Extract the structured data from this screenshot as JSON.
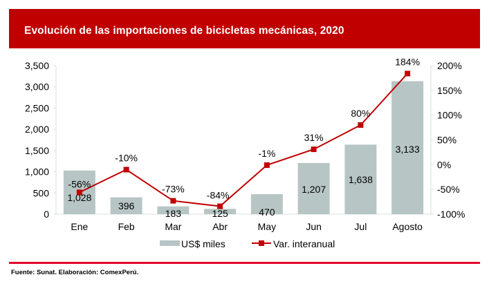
{
  "header": {
    "title": "Evolución de las importaciones de bicicletas mecánicas, 2020"
  },
  "footer": {
    "source": "Fuente: Sunat. Elaboración: ComexPerú."
  },
  "colors": {
    "header_bg": "#c00000",
    "bar": "#b7c6c4",
    "line": "#c00000",
    "footer_line": "#e4002b"
  },
  "chart_data": {
    "type": "bar+line",
    "title": "Evolución de las importaciones de bicicletas mecánicas, 2020",
    "categories": [
      "Ene",
      "Feb",
      "Mar",
      "Abr",
      "May",
      "Jun",
      "Jul",
      "Agosto"
    ],
    "series": [
      {
        "name": "US$ miles",
        "type": "bar",
        "axis": "left",
        "values": [
          1028,
          396,
          183,
          125,
          470,
          1207,
          1638,
          3133
        ],
        "labels": [
          "1,028",
          "396",
          "183",
          "125",
          "470",
          "1,207",
          "1,638",
          "3,133"
        ]
      },
      {
        "name": "Var. interanual",
        "type": "line",
        "axis": "right",
        "values": [
          -56,
          -10,
          -73,
          -84,
          -1,
          31,
          80,
          184
        ],
        "labels": [
          "-56%",
          "-10%",
          "-73%",
          "-84%",
          "-1%",
          "31%",
          "80%",
          "184%"
        ]
      }
    ],
    "left_axis": {
      "min": 0,
      "max": 3500,
      "ticks": [
        0,
        500,
        1000,
        1500,
        2000,
        2500,
        3000,
        3500
      ],
      "tick_labels": [
        "0",
        "500",
        "1,000",
        "1,500",
        "2,000",
        "2,500",
        "3,000",
        "3,500"
      ]
    },
    "right_axis": {
      "min": -100,
      "max": 200,
      "ticks": [
        -100,
        -50,
        0,
        50,
        100,
        150,
        200
      ],
      "tick_labels": [
        "-100%",
        "-50%",
        "0%",
        "50%",
        "100%",
        "150%",
        "200%"
      ]
    },
    "legend": {
      "position": "bottom",
      "entries": [
        "US$ miles",
        "Var. interanual"
      ]
    },
    "grid": false
  }
}
